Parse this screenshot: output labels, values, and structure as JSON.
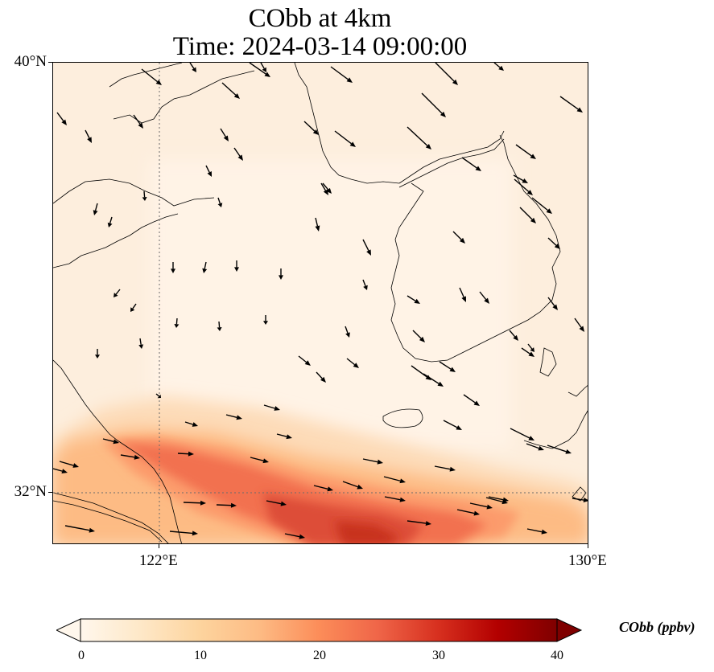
{
  "title_line1": "CObb at 4km",
  "title_line2": "Time: 2024-03-14 09:00:00",
  "axes": {
    "lat_labels": [
      "40°N",
      "32°N"
    ],
    "lon_labels": [
      "122°E",
      "130°E"
    ],
    "gridlines": "dotted at 122°E and 32°N"
  },
  "colorbar": {
    "label": "CObb (ppbv)",
    "ticks": [
      "0",
      "10",
      "20",
      "30",
      "40"
    ],
    "min": 0,
    "max": 40,
    "colormap": "OrRd",
    "extend": "both"
  },
  "colors": {
    "background_field": "#fdeedd",
    "low": "#fff7ec",
    "mid": "#fdbb84",
    "high": "#d7301f",
    "max": "#7f0000"
  }
}
